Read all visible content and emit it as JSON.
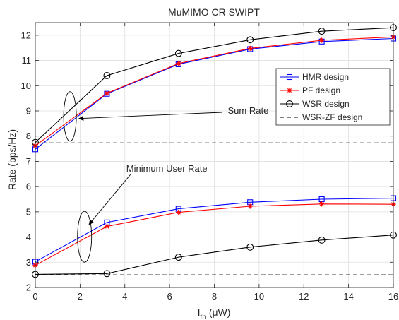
{
  "chart_data": {
    "type": "line",
    "title": "MuMIMO CR SWIPT",
    "xlabel_main": "I",
    "xlabel_sub": "th",
    "xlabel_unit": "(μW)",
    "ylabel": "Rate (bps/Hz)",
    "xlim": [
      0,
      16
    ],
    "ylim": [
      2,
      12.5
    ],
    "xticks": [
      0,
      2,
      4,
      6,
      8,
      10,
      12,
      14,
      16
    ],
    "yticks": [
      2,
      3,
      4,
      5,
      6,
      7,
      8,
      9,
      10,
      11,
      12
    ],
    "grid": true,
    "legend_position": "center-right",
    "x": [
      0,
      3.2,
      6.4,
      9.6,
      12.8,
      16
    ],
    "series": [
      {
        "name": "HMR design",
        "color": "#0000ff",
        "marker": "square",
        "dash": "solid",
        "groups": [
          [
            7.48,
            9.68,
            10.85,
            11.45,
            11.75,
            11.87
          ],
          [
            3.02,
            4.58,
            5.12,
            5.38,
            5.5,
            5.54
          ]
        ]
      },
      {
        "name": "PF design",
        "color": "#ff0000",
        "marker": "star",
        "dash": "solid",
        "groups": [
          [
            7.62,
            9.7,
            10.88,
            11.48,
            11.8,
            11.93
          ],
          [
            2.88,
            4.42,
            4.98,
            5.22,
            5.31,
            5.3
          ]
        ]
      },
      {
        "name": "WSR design",
        "color": "#000000",
        "marker": "circle",
        "dash": "solid",
        "groups": [
          [
            7.75,
            10.4,
            11.28,
            11.82,
            12.16,
            12.3
          ],
          [
            2.52,
            2.55,
            3.2,
            3.6,
            3.88,
            4.08
          ]
        ]
      },
      {
        "name": "WSR-ZF design",
        "color": "#000000",
        "marker": "none",
        "dash": "dashed",
        "groups": [
          [
            7.73,
            7.73,
            7.73,
            7.73,
            7.73,
            7.73
          ],
          [
            2.5,
            2.5,
            2.5,
            2.5,
            2.5,
            2.5
          ]
        ]
      }
    ],
    "annotations": [
      {
        "text": "Sum Rate",
        "ellipse_center": [
          1.55,
          8.78
        ],
        "arrow_to": [
          1.95,
          8.7
        ],
        "text_at": [
          8.6,
          9.0
        ]
      },
      {
        "text": "Minimum User Rate",
        "ellipse_center": [
          2.2,
          4.01
        ],
        "arrow_to": [
          2.4,
          4.5
        ],
        "text_at": [
          4.0,
          6.7
        ]
      }
    ]
  }
}
